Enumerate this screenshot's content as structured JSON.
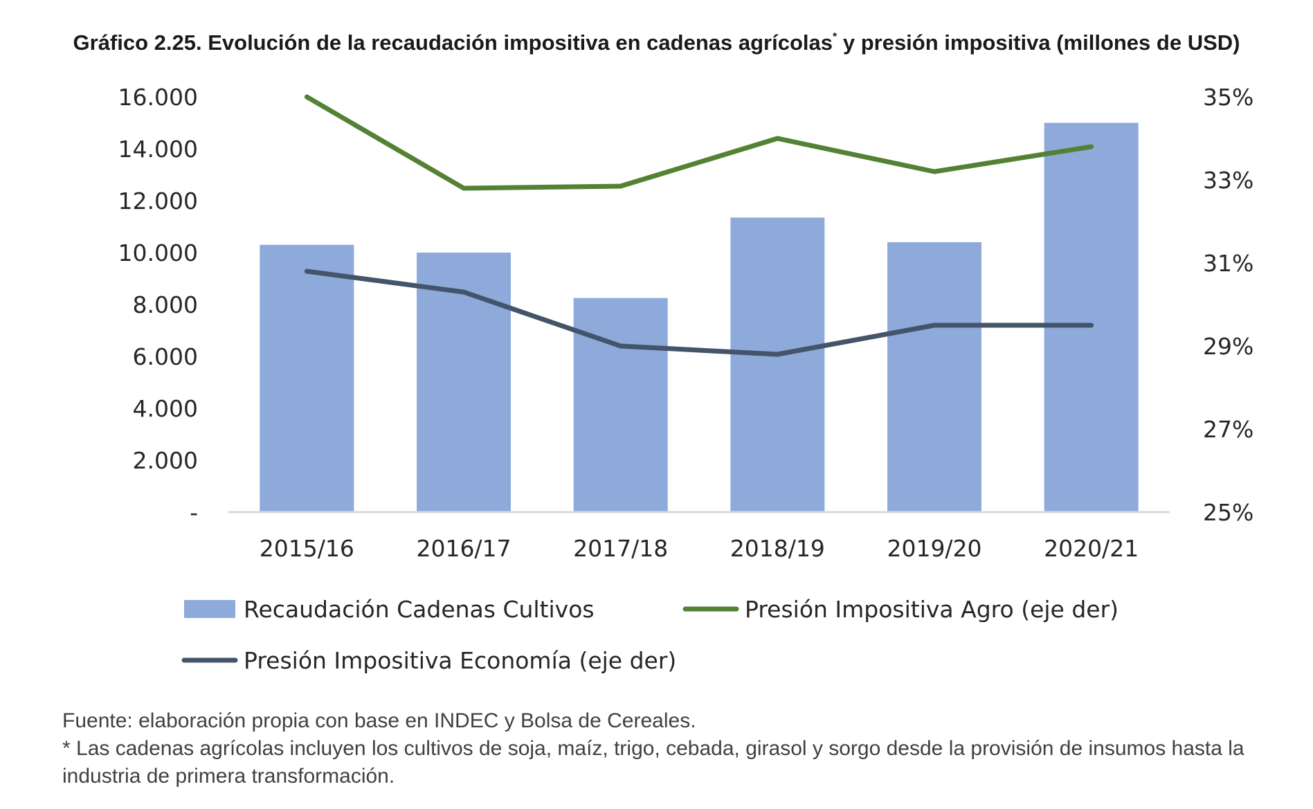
{
  "title": {
    "main": "Gráfico 2.25. Evolución de la recaudación impositiva en cadenas agrícolas",
    "superscript": "*",
    "suffix": " y presión impositiva (millones de USD)"
  },
  "chart_data": {
    "type": "bar",
    "categories": [
      "2015/16",
      "2016/17",
      "2017/18",
      "2018/19",
      "2019/20",
      "2020/21"
    ],
    "series": [
      {
        "name": "Recaudación Cadenas Cultivos",
        "kind": "bar",
        "axis": "left",
        "color": "#8eaadb",
        "values": [
          10300,
          10000,
          8250,
          11350,
          10400,
          15000
        ]
      },
      {
        "name": "Presión Impositiva Agro (eje der)",
        "kind": "line",
        "axis": "right",
        "color": "#548235",
        "values": [
          35.0,
          32.8,
          32.85,
          34.0,
          33.2,
          33.8
        ]
      },
      {
        "name": "Presión Impositiva Economía (eje der)",
        "kind": "line",
        "axis": "right",
        "color": "#44546a",
        "values": [
          30.8,
          30.3,
          29.0,
          28.8,
          29.5,
          29.5
        ]
      }
    ],
    "y_left": {
      "min": 0,
      "max": 16000,
      "ticks": [
        0,
        2000,
        4000,
        6000,
        8000,
        10000,
        12000,
        14000,
        16000
      ],
      "tick_labels": [
        "-",
        "2.000",
        "4.000",
        "6.000",
        "8.000",
        "10.000",
        "12.000",
        "14.000",
        "16.000"
      ]
    },
    "y_right": {
      "min": 25,
      "max": 35,
      "ticks": [
        25,
        27,
        29,
        31,
        33,
        35
      ],
      "tick_labels": [
        "25%",
        "27%",
        "29%",
        "31%",
        "33%",
        "35%"
      ]
    },
    "grid": false,
    "legend_position": "bottom"
  },
  "footer": {
    "source": "Fuente: elaboración propia con base en INDEC y Bolsa de Cereales.",
    "note": "* Las cadenas agrícolas incluyen los cultivos de soja, maíz, trigo, cebada, girasol y sorgo desde la provisión de insumos hasta la industria de primera transformación."
  }
}
